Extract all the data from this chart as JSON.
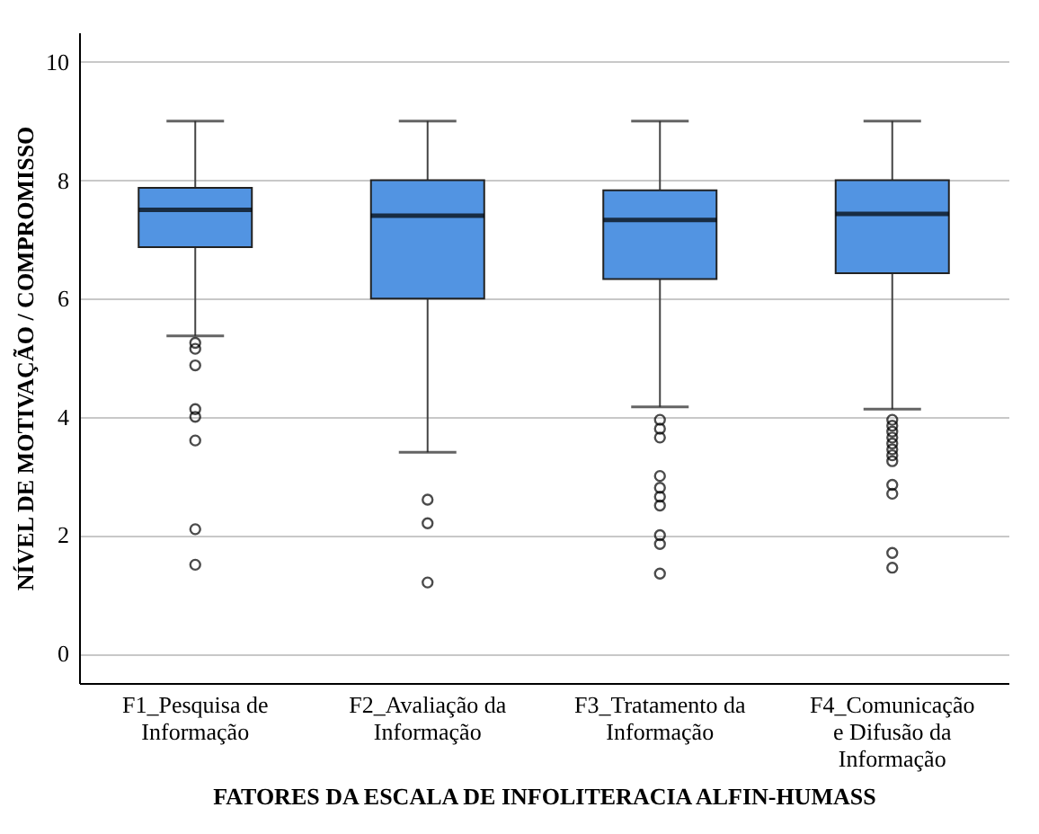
{
  "chart_data": {
    "type": "box",
    "xlabel": "FATORES DA ESCALA DE INFOLITERACIA ALFIN-HUMASS",
    "ylabel": "NÍVEL DE MOTIVAÇÃO / COMPROMISSO",
    "categories": [
      "F1_Pesquisa de Informação",
      "F2_Avaliação da Informação",
      "F3_Tratamento da Informação",
      "F4_Comunicação e Difusão da Informação"
    ],
    "series": [
      {
        "color": "#5294e2",
        "boxes": [
          {
            "low": 5.37,
            "q1": 6.87,
            "median": 7.5,
            "q3": 7.87,
            "high": 9,
            "outliers": [
              5.25,
              5.15,
              4.87,
              4.13,
              4.0,
              3.6,
              2.1,
              1.5
            ]
          },
          {
            "low": 3.4,
            "q1": 6.0,
            "median": 7.4,
            "q3": 8.0,
            "high": 9,
            "outliers": [
              2.6,
              2.2,
              1.2
            ]
          },
          {
            "low": 4.17,
            "q1": 6.33,
            "median": 7.33,
            "q3": 7.83,
            "high": 9,
            "outliers": [
              3.95,
              3.8,
              3.65,
              3.0,
              2.8,
              2.65,
              2.5,
              2.0,
              1.85,
              1.35
            ]
          },
          {
            "low": 4.13,
            "q1": 6.43,
            "median": 7.43,
            "q3": 8.0,
            "high": 9,
            "outliers": [
              3.95,
              3.85,
              3.75,
              3.65,
              3.55,
              3.45,
              3.35,
              3.25,
              2.85,
              2.7,
              1.7,
              1.45
            ]
          }
        ]
      }
    ],
    "ylim": [
      -0.5,
      10.5
    ],
    "yticks": [
      0,
      2,
      4,
      6,
      8,
      10
    ],
    "grid": "y"
  }
}
